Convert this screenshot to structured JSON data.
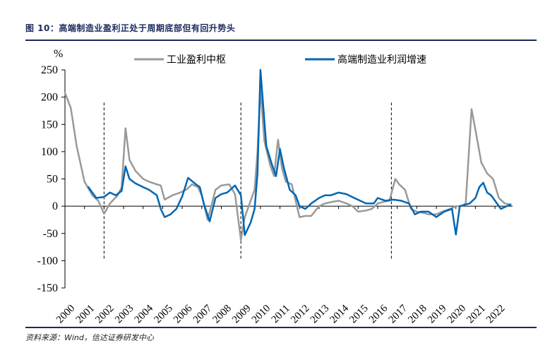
{
  "header": {
    "title": "图 10：高端制造业盈利正处于周期底部但有回升势头",
    "source": "资料来源：Wind，信达证券研发中心"
  },
  "chart_data": {
    "type": "line",
    "title": "图 10：高端制造业盈利正处于周期底部但有回升势头",
    "ylabel": "%",
    "xlabel": "",
    "ylim": [
      -150,
      250
    ],
    "yticks": [
      -150,
      -100,
      -50,
      0,
      50,
      100,
      150,
      200,
      250
    ],
    "xlim": [
      2000.0,
      2022.9
    ],
    "xticks": [
      "2000",
      "2001",
      "2002",
      "2003",
      "2004",
      "2005",
      "2006",
      "2007",
      "2008",
      "2009",
      "2010",
      "2011",
      "2012",
      "2013",
      "2014",
      "2015",
      "2016",
      "2017",
      "2018",
      "2019",
      "2020",
      "2021",
      "2022"
    ],
    "grid": false,
    "legend_position": "top",
    "cycle_markers": [
      2002.0,
      2009.0,
      2016.7
    ],
    "series": [
      {
        "name": "工业盈利中枢",
        "color": "#999999",
        "x": [
          2000.0,
          2000.3,
          2000.6,
          2001.0,
          2001.4,
          2001.7,
          2002.0,
          2002.3,
          2002.7,
          2002.9,
          2003.1,
          2003.3,
          2003.6,
          2004.0,
          2004.3,
          2004.7,
          2004.9,
          2005.1,
          2005.5,
          2005.9,
          2006.2,
          2006.5,
          2006.8,
          2007.0,
          2007.3,
          2007.7,
          2008.0,
          2008.4,
          2008.7,
          2009.0,
          2009.2,
          2009.5,
          2009.7,
          2009.85,
          2010.0,
          2010.2,
          2010.5,
          2010.7,
          2010.9,
          2011.1,
          2011.3,
          2011.6,
          2012.0,
          2012.3,
          2012.6,
          2013.0,
          2013.3,
          2013.7,
          2014.0,
          2014.4,
          2014.7,
          2015.0,
          2015.4,
          2015.7,
          2016.0,
          2016.3,
          2016.6,
          2016.9,
          2017.1,
          2017.4,
          2017.7,
          2018.0,
          2018.3,
          2018.6,
          2019.0,
          2019.3,
          2019.7,
          2020.0,
          2020.3,
          2020.5,
          2020.8,
          2021.0,
          2021.3,
          2021.6,
          2021.9,
          2022.2,
          2022.5,
          2022.8
        ],
        "y": [
          208,
          180,
          110,
          45,
          20,
          10,
          -14,
          5,
          20,
          35,
          143,
          85,
          65,
          50,
          45,
          40,
          38,
          12,
          20,
          25,
          30,
          40,
          35,
          20,
          -25,
          30,
          38,
          40,
          22,
          -62,
          -20,
          10,
          30,
          100,
          215,
          120,
          75,
          55,
          122,
          70,
          45,
          40,
          -20,
          -18,
          -18,
          0,
          5,
          8,
          10,
          5,
          0,
          -10,
          -8,
          -5,
          5,
          8,
          10,
          50,
          40,
          30,
          -5,
          -10,
          -12,
          -15,
          -15,
          -10,
          -5,
          0,
          0,
          5,
          178,
          140,
          80,
          60,
          50,
          15,
          5,
          3
        ]
      },
      {
        "name": "高端制造业利润增速",
        "color": "#0066b2",
        "x": [
          2000.0,
          2000.2,
          2000.4,
          2000.6,
          2000.9,
          2001.2,
          2001.6,
          2002.0,
          2002.3,
          2002.6,
          2002.9,
          2003.1,
          2003.3,
          2003.6,
          2004.0,
          2004.3,
          2004.7,
          2004.9,
          2005.1,
          2005.4,
          2005.7,
          2006.0,
          2006.3,
          2006.7,
          2006.9,
          2007.1,
          2007.4,
          2007.7,
          2008.0,
          2008.3,
          2008.7,
          2009.0,
          2009.2,
          2009.5,
          2009.7,
          2009.85,
          2010.0,
          2010.3,
          2010.6,
          2010.8,
          2011.0,
          2011.2,
          2011.5,
          2011.8,
          2012.0,
          2012.3,
          2012.6,
          2013.0,
          2013.3,
          2013.6,
          2014.0,
          2014.4,
          2014.8,
          2015.1,
          2015.4,
          2015.8,
          2016.0,
          2016.4,
          2016.8,
          2017.2,
          2017.6,
          2017.9,
          2018.2,
          2018.6,
          2019.0,
          2019.4,
          2019.8,
          2020.0,
          2020.2,
          2020.4,
          2020.7,
          2021.0,
          2021.2,
          2021.4,
          2021.6,
          2021.8,
          2022.0,
          2022.3,
          2022.6,
          2022.8
        ],
        "y": [
          null,
          null,
          null,
          null,
          null,
          35,
          15,
          17,
          25,
          20,
          28,
          73,
          50,
          42,
          35,
          30,
          20,
          -5,
          -20,
          -15,
          -5,
          18,
          52,
          40,
          35,
          5,
          -28,
          15,
          22,
          25,
          38,
          20,
          -53,
          -30,
          -5,
          60,
          250,
          110,
          75,
          55,
          105,
          70,
          30,
          20,
          0,
          -5,
          5,
          15,
          20,
          20,
          25,
          22,
          15,
          10,
          5,
          5,
          15,
          10,
          12,
          10,
          5,
          -15,
          -10,
          -10,
          -20,
          -10,
          -5,
          -52,
          0,
          2,
          5,
          15,
          35,
          43,
          25,
          20,
          10,
          -5,
          0,
          3
        ]
      }
    ]
  }
}
